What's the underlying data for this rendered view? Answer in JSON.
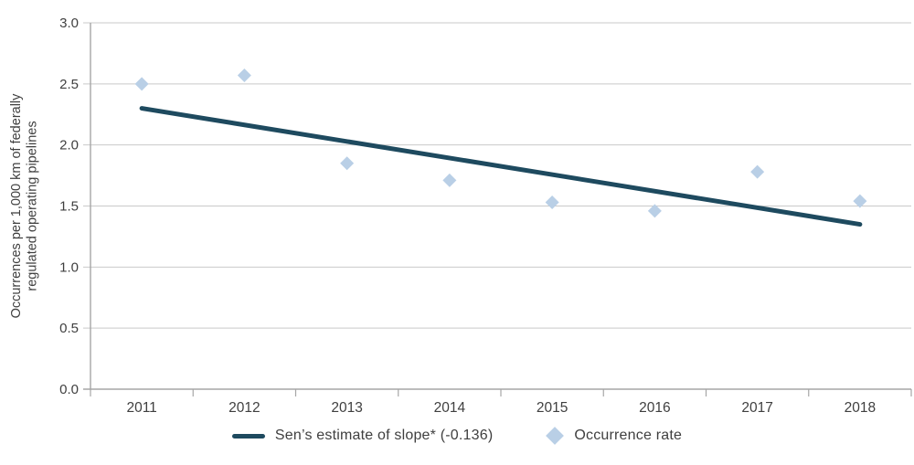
{
  "chart_data": {
    "type": "scatter",
    "title": "",
    "x_categories": [
      "2011",
      "2012",
      "2013",
      "2014",
      "2015",
      "2016",
      "2017",
      "2018"
    ],
    "y_axis": {
      "label_line1": "Occurrences per 1,000 km of federally",
      "label_line2": "regulated operating pipelines",
      "min": 0,
      "max": 3,
      "tick_step": 0.5,
      "tick_labels": [
        "0.0",
        "0.5",
        "1.0",
        "1.5",
        "2.0",
        "2.5",
        "3.0"
      ]
    },
    "series": [
      {
        "name": "Occurrence rate",
        "type": "scatter",
        "marker": "diamond",
        "color": "#b9cfe6",
        "values": [
          2.5,
          2.57,
          1.85,
          1.71,
          1.53,
          1.46,
          1.78,
          1.54
        ]
      },
      {
        "name": "Sen’s estimate of slope* (-0.136)",
        "type": "trend-line",
        "color": "#1e4a5f",
        "slope": -0.136,
        "endpoint_categories": [
          "2011",
          "2018"
        ],
        "endpoint_values": [
          2.3,
          1.35
        ]
      }
    ],
    "grid": "horizontal",
    "legend_position": "bottom"
  },
  "legend": {
    "items": [
      {
        "label": "Sen’s estimate of slope* (-0.136)",
        "swatch": "line",
        "color": "#1e4a5f"
      },
      {
        "label": "Occurrence rate",
        "swatch": "diamond",
        "color": "#b9cfe6"
      }
    ]
  },
  "colors": {
    "trend_line": "#1e4a5f",
    "marker_fill": "#b9cfe6",
    "gridline": "#c9c9c9",
    "axis_line": "#a6a6a6",
    "text": "#3f3f3f"
  }
}
